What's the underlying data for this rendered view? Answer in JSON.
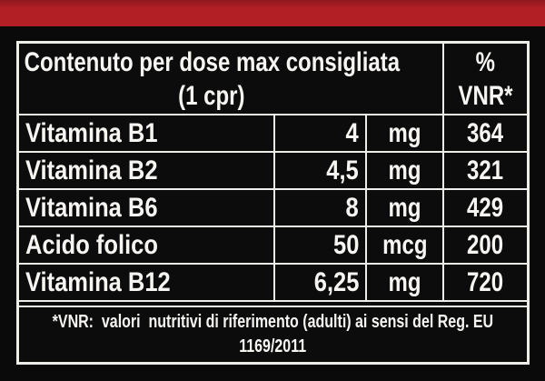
{
  "colors": {
    "accent_bar": "#b22026",
    "background": "#0a0a0a",
    "table_lines": "#efede8",
    "table_cell_background": "#0c0c0c",
    "text": "#f7f5f2"
  },
  "table": {
    "header": {
      "title_line1": "Contenuto per dose max consigliata",
      "title_line2": "(1 cpr)",
      "vnr_line1": "%",
      "vnr_line2": "VNR*"
    },
    "rows": [
      {
        "name": "Vitamina B1",
        "amount": "4",
        "unit": "mg",
        "vnr": "364"
      },
      {
        "name": "Vitamina B2",
        "amount": "4,5",
        "unit": "mg",
        "vnr": "321"
      },
      {
        "name": "Vitamina B6",
        "amount": "8",
        "unit": "mg",
        "vnr": "429"
      },
      {
        "name": "Acido folico",
        "amount": "50",
        "unit": "mcg",
        "vnr": "200"
      },
      {
        "name": "Vitamina B12",
        "amount": "6,25",
        "unit": "mg",
        "vnr": "720"
      }
    ],
    "footnote_line1": "*VNR:  valori  nutritivi di riferimento (adulti) ai sensi del Reg. EU",
    "footnote_line2": "1169/2011"
  }
}
